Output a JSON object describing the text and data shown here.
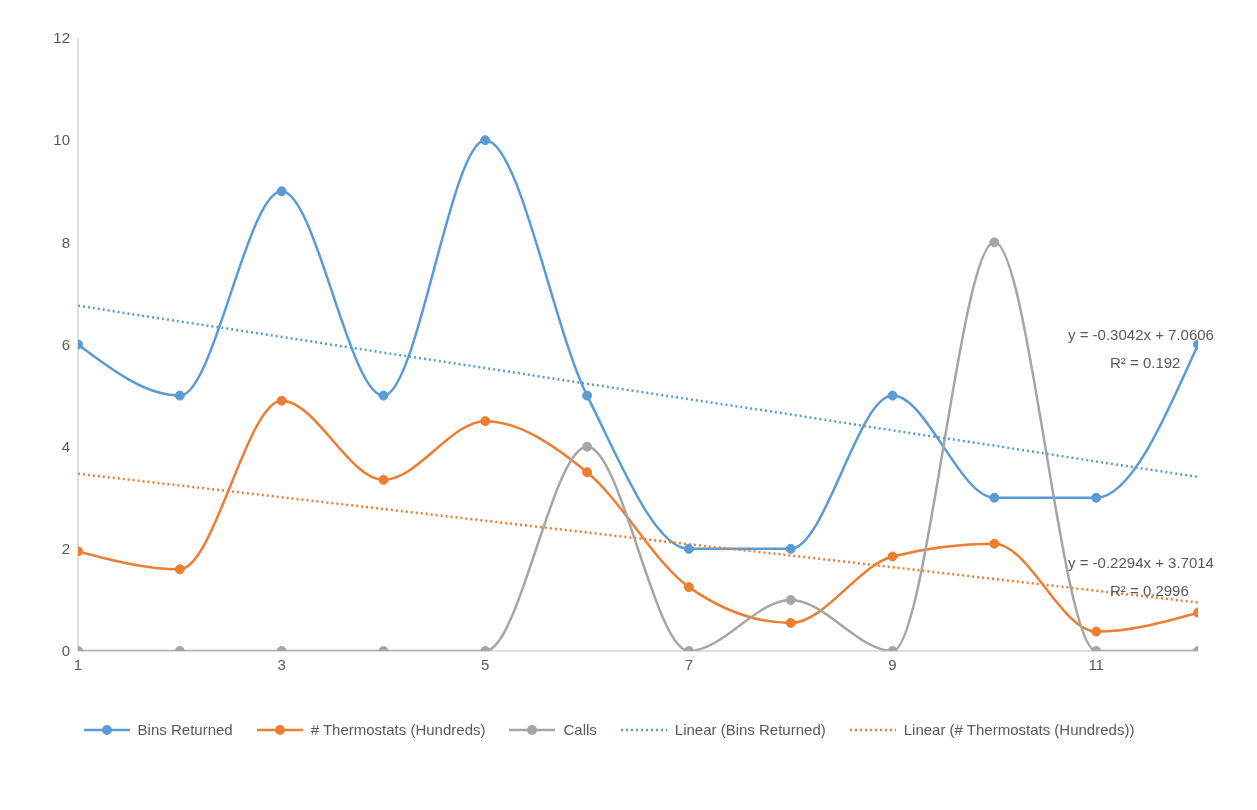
{
  "chart_data": {
    "type": "line",
    "x": [
      1,
      2,
      3,
      4,
      5,
      6,
      7,
      8,
      9,
      10,
      11,
      12
    ],
    "xlim": [
      1,
      12
    ],
    "xticks": [
      1,
      3,
      5,
      7,
      9,
      11
    ],
    "ylim": [
      0,
      12
    ],
    "yticks": [
      0,
      2,
      4,
      6,
      8,
      10,
      12
    ],
    "grid": false,
    "legend": "bottom",
    "marker": "circle",
    "series": [
      {
        "name": "Bins Returned",
        "color": "#5b9bd5",
        "values": [
          6,
          5,
          9,
          5,
          10,
          5,
          2,
          2,
          5,
          3,
          3,
          6
        ]
      },
      {
        "name": "# Thermostats (Hundreds)",
        "color": "#ed7d31",
        "values": [
          1.95,
          1.6,
          4.9,
          3.35,
          4.5,
          3.5,
          1.25,
          0.55,
          1.85,
          2.1,
          0.38,
          0.75
        ]
      },
      {
        "name": "Calls",
        "color": "#a5a5a5",
        "values": [
          0,
          0,
          0,
          0,
          0,
          4,
          0,
          1,
          0,
          8,
          0,
          0
        ]
      },
      {
        "name": "Linear (Bins Returned)",
        "color": "#5b9bd5",
        "type": "line",
        "values": [
          6.76,
          6.45,
          6.15,
          5.84,
          5.54,
          5.23,
          4.93,
          4.63,
          4.32,
          4.02,
          3.71,
          3.41
        ],
        "marker": "none",
        "line_style": "dotted"
      },
      {
        "name": "Linear (# Thermostats (Hundreds))",
        "color": "#ed7d31",
        "type": "line",
        "values": [
          3.47,
          3.24,
          3.01,
          2.78,
          2.55,
          2.32,
          2.09,
          1.87,
          1.64,
          1.41,
          1.18,
          0.95
        ],
        "marker": "none",
        "line_style": "dotted"
      }
    ],
    "annotations": [
      "y = -0.3042x + 7.0606",
      "R² = 0.192",
      "y = -0.2294x + 3.7014",
      "R² = 0.2996"
    ]
  }
}
